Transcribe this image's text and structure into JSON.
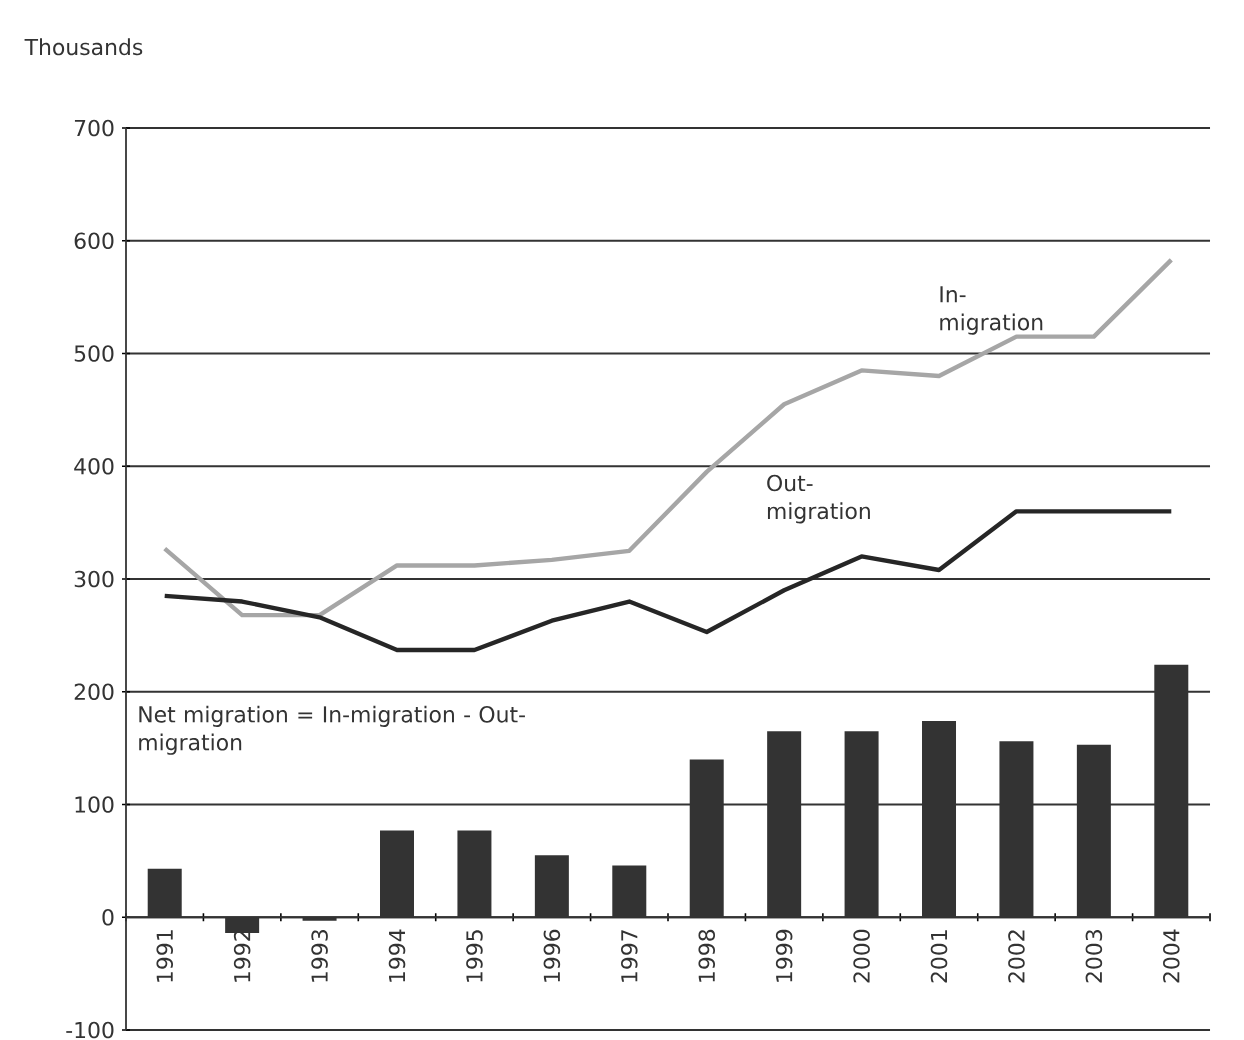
{
  "chart_data": {
    "type": "bar",
    "ylabel": "Thousands",
    "categories": [
      "1991",
      "1992",
      "1993",
      "1994",
      "1995",
      "1996",
      "1997",
      "1998",
      "1999",
      "2000",
      "2001",
      "2002",
      "2003",
      "2004"
    ],
    "series": [
      {
        "color": "#333333",
        "values": [
          43,
          -14,
          -3,
          77,
          77,
          55,
          46,
          140,
          165,
          165,
          174,
          156,
          153,
          224
        ]
      },
      {
        "type": "line",
        "name": "In-migration",
        "color": "#a6a6a6",
        "values": [
          327,
          268,
          268,
          312,
          312,
          317,
          325,
          395,
          455,
          485,
          480,
          515,
          515,
          583
        ]
      },
      {
        "type": "line",
        "name": "Out-migration",
        "color": "#262626",
        "values": [
          285,
          280,
          266,
          237,
          237,
          263,
          280,
          253,
          290,
          320,
          308,
          360,
          360,
          360
        ]
      }
    ],
    "ylim": [
      -100,
      700
    ],
    "yticks": [
      -100,
      0,
      100,
      200,
      300,
      400,
      500,
      600,
      700
    ],
    "grid": "y",
    "annotations": [
      "Net migration = In-migration - Out-migration"
    ]
  }
}
